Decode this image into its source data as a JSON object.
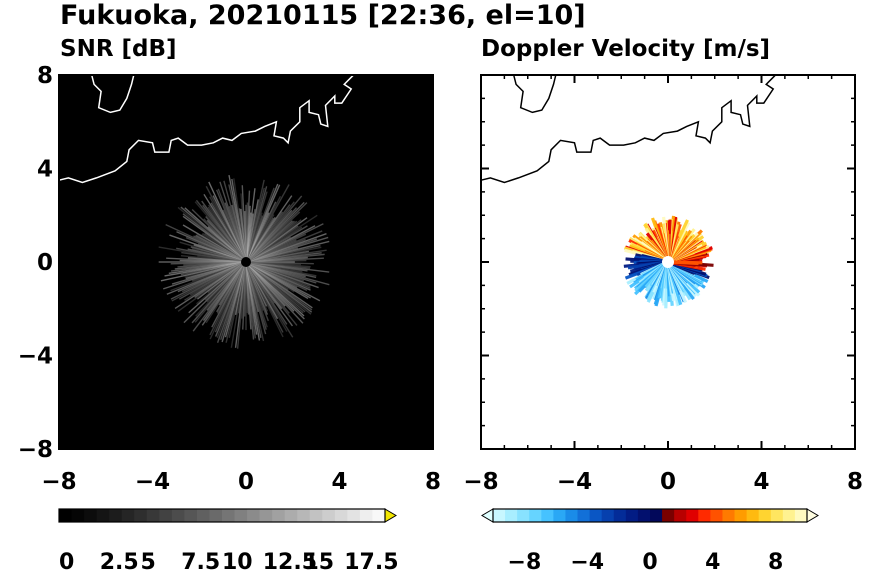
{
  "figure_title": "Fukuoka, 20210115 [22:36, el=10]",
  "chart_data": [
    {
      "type": "heatmap",
      "title": "SNR [dB]",
      "background": "#000000",
      "x_ticks": [
        "−8",
        "−4",
        "0",
        "4",
        "8"
      ],
      "y_ticks": [
        "8",
        "4",
        "0",
        "−4",
        "−8"
      ],
      "xlim": [
        -8,
        8
      ],
      "ylim": [
        -8,
        8
      ],
      "radar_echo_radius": 3.8,
      "colorbar": {
        "ticks": [
          "0",
          "2.5",
          "5",
          "7.5",
          "10",
          "12.5",
          "15",
          "17.5"
        ],
        "tick_values": [
          0,
          2.5,
          5,
          7.5,
          10,
          12.5,
          15,
          17.5
        ],
        "range": [
          0,
          20
        ],
        "extend": "max",
        "extend_color": "#f2e600",
        "colors": [
          "#000000",
          "#050505",
          "#0c0c0c",
          "#141414",
          "#1c1c1c",
          "#252525",
          "#2e2e2e",
          "#383838",
          "#424242",
          "#4c4c4c",
          "#565656",
          "#606060",
          "#6a6a6a",
          "#757575",
          "#808080",
          "#8b8b8b",
          "#969696",
          "#a1a1a1",
          "#acacac",
          "#b7b7b7",
          "#c2c2c2",
          "#cdcdcd",
          "#d8d8d8",
          "#e3e3e3",
          "#eeeeee",
          "#f8f8f8"
        ]
      }
    },
    {
      "type": "heatmap",
      "title": "Doppler Velocity [m/s]",
      "background": "#ffffff",
      "x_ticks": [
        "−8",
        "−4",
        "0",
        "4",
        "8"
      ],
      "y_ticks": [],
      "xlim": [
        -8,
        8
      ],
      "ylim": [
        -8,
        8
      ],
      "radar_echo_radius": 2.0,
      "colorbar": {
        "ticks": [
          "−8",
          "−4",
          "0",
          "4",
          "8"
        ],
        "tick_values": [
          -8,
          -4,
          0,
          4,
          8
        ],
        "range": [
          -10,
          10
        ],
        "extend": "both",
        "extend_colors": [
          "#e0ffff",
          "#fffde0"
        ],
        "colors": [
          "#c8f7ff",
          "#a8eeff",
          "#88e2ff",
          "#66d4ff",
          "#46c2ff",
          "#2aa8f5",
          "#1a8ce8",
          "#1270d8",
          "#0a56c4",
          "#0640ae",
          "#032c98",
          "#021c84",
          "#02106e",
          "#02085a",
          "#7a0000",
          "#b80000",
          "#e00000",
          "#ff2a00",
          "#ff5200",
          "#ff7a00",
          "#ff9c00",
          "#ffba10",
          "#ffd430",
          "#ffe660",
          "#fff290",
          "#fffac0"
        ]
      }
    }
  ]
}
